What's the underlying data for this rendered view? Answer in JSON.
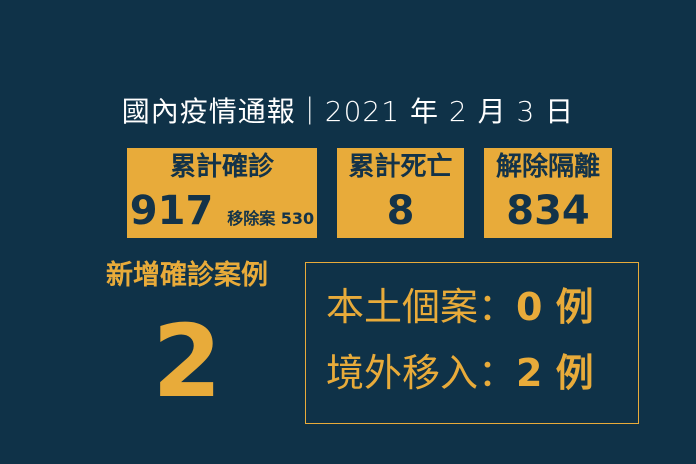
{
  "title": "國內疫情通報｜2021 年 2 月 3 日",
  "stats": [
    {
      "label": "累計確診",
      "value": "917",
      "sub": "移除案 530"
    },
    {
      "label": "累計死亡",
      "value": "8"
    },
    {
      "label": "解除隔離",
      "value": "834"
    }
  ],
  "new_cases": {
    "label": "新增確診案例",
    "value": "2"
  },
  "breakdown": [
    {
      "label": "本土個案：",
      "value": "0 例"
    },
    {
      "label": "境外移入：",
      "value": "2 例"
    }
  ],
  "colors": {
    "background": "#0f3248",
    "accent": "#e8ab3a",
    "dark_text": "#133349"
  }
}
